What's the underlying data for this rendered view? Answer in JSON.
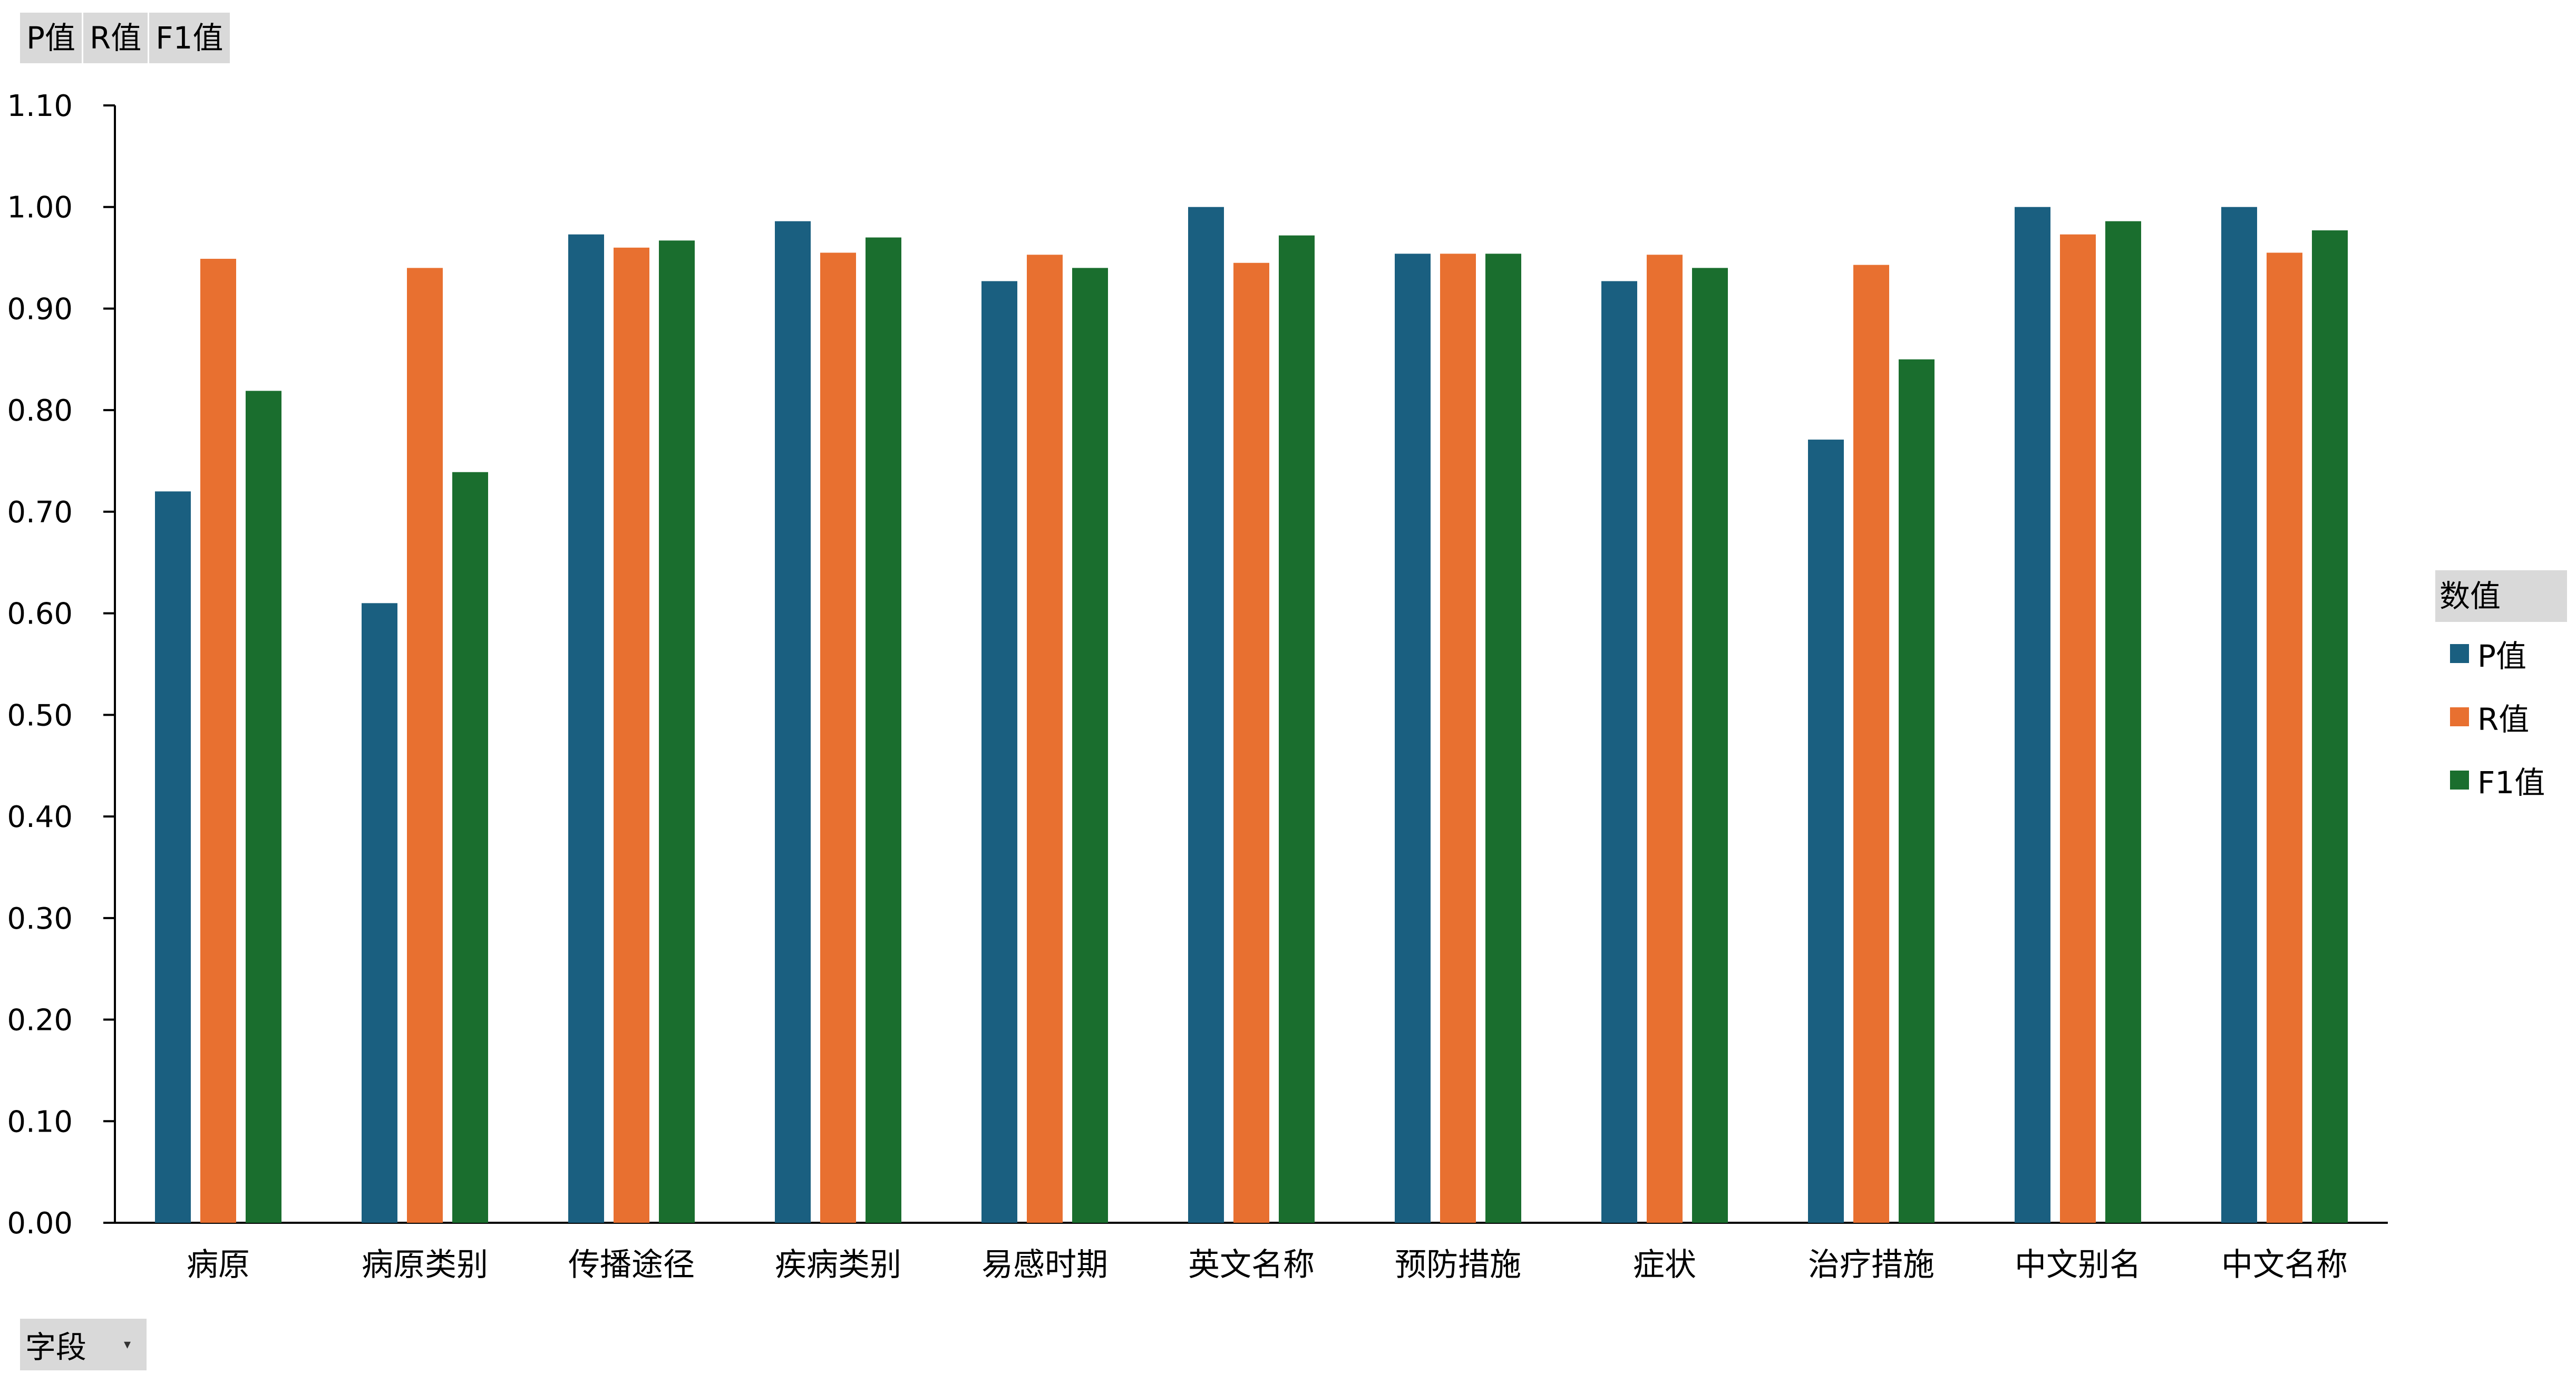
{
  "field_buttons": [
    "P值",
    "R值",
    "F1值"
  ],
  "axis_field": {
    "label": "字段",
    "arrow": "▾"
  },
  "legend": {
    "title": "数值",
    "items": [
      {
        "label": "P值",
        "color": "#1a5f80"
      },
      {
        "label": "R值",
        "color": "#e87030"
      },
      {
        "label": "F1值",
        "color": "#1a6e2e"
      }
    ]
  },
  "chart_data": {
    "type": "bar",
    "categories": [
      "病原",
      "病原类别",
      "传播途径",
      "疾病类别",
      "易感时期",
      "英文名称",
      "预防措施",
      "症状",
      "治疗措施",
      "中文别名",
      "中文名称"
    ],
    "series": [
      {
        "name": "P值",
        "color": "#1a5f80",
        "values": [
          0.72,
          0.61,
          0.973,
          0.986,
          0.927,
          1.0,
          0.954,
          0.927,
          0.771,
          1.0,
          1.0
        ]
      },
      {
        "name": "R值",
        "color": "#e87030",
        "values": [
          0.949,
          0.94,
          0.96,
          0.955,
          0.953,
          0.945,
          0.954,
          0.953,
          0.943,
          0.973,
          0.955
        ]
      },
      {
        "name": "F1值",
        "color": "#1a6e2e",
        "values": [
          0.819,
          0.739,
          0.967,
          0.97,
          0.94,
          0.972,
          0.954,
          0.94,
          0.85,
          0.986,
          0.977
        ]
      }
    ],
    "yticks": [
      "0.00",
      "0.10",
      "0.20",
      "0.30",
      "0.40",
      "0.50",
      "0.60",
      "0.70",
      "0.80",
      "0.90",
      "1.00",
      "1.10"
    ],
    "ylim": [
      0,
      1.1
    ],
    "grid": false,
    "legend_position": "right"
  }
}
